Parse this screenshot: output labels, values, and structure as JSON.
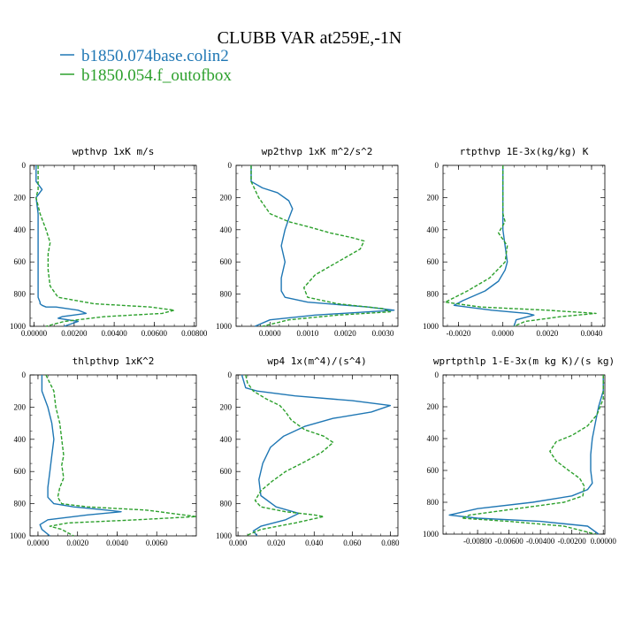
{
  "figure": {
    "title": "CLUBB VAR at259E,-1N",
    "legend": [
      {
        "label": "b1850.074base.colin2",
        "color": "#1f77b4"
      },
      {
        "label": "b1850.054.f_outofbox",
        "color": "#2ca02c"
      }
    ]
  },
  "chart_data": [
    {
      "type": "line",
      "title": "wpthvp  1xK m/s",
      "xlim": [
        -0.0002,
        0.0081
      ],
      "ylim": [
        1000,
        0
      ],
      "xticks": [
        0,
        0.002,
        0.004,
        0.006,
        0.008
      ],
      "xtick_labels": [
        "0.00000",
        "0.00200",
        "0.00400",
        "0.00600",
        "0.00800"
      ],
      "yticks": [
        0,
        200,
        400,
        600,
        800,
        1000
      ],
      "ytick_labels": [
        "0",
        "200",
        "400",
        "600",
        "800",
        "1000"
      ],
      "series": [
        {
          "color": "#1f77b4",
          "dash": false,
          "x": [
            0.0001,
            0.0001,
            0.0004,
            0.0001,
            0.0002,
            0.0002,
            0.0002,
            0.0002,
            0.0003,
            0.0003,
            0.0004,
            0.0006,
            0.0011,
            0.0022,
            0.0026,
            0.0014,
            0.0012,
            0.0022,
            0.0015
          ],
          "y": [
            0,
            100,
            150,
            200,
            300,
            500,
            700,
            820,
            850,
            860,
            870,
            880,
            880,
            900,
            920,
            940,
            950,
            970,
            1000
          ]
        },
        {
          "color": "#2ca02c",
          "dash": true,
          "x": [
            0.0002,
            0.0002,
            0.0001,
            0.0003,
            0.0006,
            0.0008,
            0.0007,
            0.0007,
            0.0008,
            0.0012,
            0.003,
            0.0058,
            0.007,
            0.0064,
            0.0035,
            0.0015,
            0.0006
          ],
          "y": [
            0,
            150,
            200,
            300,
            400,
            480,
            550,
            650,
            750,
            820,
            860,
            880,
            900,
            920,
            940,
            970,
            1000
          ]
        }
      ]
    },
    {
      "type": "line",
      "title": "wp2thvp  1xK m^2/s^2",
      "xlim": [
        -0.0009,
        0.0034
      ],
      "ylim": [
        1000,
        0
      ],
      "xticks": [
        0,
        0.001,
        0.002,
        0.003
      ],
      "xtick_labels": [
        "0.0000",
        "0.0010",
        "0.0020",
        "0.0030"
      ],
      "yticks": [
        0,
        200,
        400,
        600,
        800,
        1000
      ],
      "ytick_labels": [
        "0",
        "200",
        "400",
        "600",
        "800",
        "1000"
      ],
      "series": [
        {
          "color": "#1f77b4",
          "dash": false,
          "x": [
            -0.0005,
            -0.0005,
            -0.0002,
            0.0002,
            0.0005,
            0.0006,
            0.0005,
            0.0004,
            0.0003,
            0.0004,
            0.0003,
            0.0003,
            0.0004,
            0.001,
            0.0026,
            0.0033,
            0.0012,
            0.0,
            -0.0004
          ],
          "y": [
            0,
            100,
            140,
            170,
            220,
            270,
            330,
            400,
            500,
            600,
            700,
            780,
            820,
            850,
            880,
            900,
            930,
            960,
            1000
          ]
        },
        {
          "color": "#2ca02c",
          "dash": true,
          "x": [
            -0.0005,
            -0.0005,
            -0.0003,
            0.0,
            0.0005,
            0.001,
            0.0016,
            0.0022,
            0.0025,
            0.0024,
            0.0018,
            0.0012,
            0.0009,
            0.001,
            0.0018,
            0.003,
            0.0032,
            0.0018,
            0.0005,
            -0.0002
          ],
          "y": [
            0,
            100,
            200,
            300,
            350,
            380,
            420,
            450,
            470,
            520,
            600,
            680,
            760,
            820,
            860,
            890,
            910,
            930,
            960,
            1000
          ]
        }
      ]
    },
    {
      "type": "line",
      "title": "rtpthvp  1E-3x(kg/kg) K",
      "xlim": [
        -0.0027,
        0.0046
      ],
      "ylim": [
        1000,
        0
      ],
      "xticks": [
        -0.002,
        0,
        0.002,
        0.004
      ],
      "xtick_labels": [
        "-0.0020",
        "0.0000",
        "0.0020",
        "0.0040"
      ],
      "yticks": [
        0,
        200,
        400,
        600,
        800,
        1000
      ],
      "ytick_labels": [
        "0",
        "200",
        "400",
        "600",
        "800",
        "1000"
      ],
      "series": [
        {
          "color": "#1f77b4",
          "dash": false,
          "x": [
            0.0,
            0.0,
            0.0,
            0.0001,
            0.0002,
            0.0001,
            -0.0002,
            -0.0008,
            -0.0018,
            -0.0022,
            -0.0005,
            0.0011,
            0.0014,
            0.0006,
            0.0005
          ],
          "y": [
            0,
            200,
            400,
            500,
            600,
            650,
            720,
            780,
            840,
            870,
            900,
            920,
            930,
            960,
            1000
          ]
        },
        {
          "color": "#2ca02c",
          "dash": true,
          "x": [
            0.0,
            0.0,
            0.0,
            0.0001,
            -0.0002,
            0.0002,
            0.0001,
            -0.0006,
            -0.0016,
            -0.0026,
            -0.001,
            0.002,
            0.0042,
            0.0026,
            0.001,
            0.0005
          ],
          "y": [
            0,
            200,
            300,
            350,
            420,
            500,
            600,
            700,
            780,
            850,
            880,
            900,
            920,
            940,
            970,
            1000
          ]
        }
      ]
    },
    {
      "type": "line",
      "title": "thlpthvp  1xK^2",
      "xlim": [
        -0.0004,
        0.008
      ],
      "ylim": [
        1000,
        0
      ],
      "xticks": [
        0,
        0.002,
        0.004,
        0.006
      ],
      "xtick_labels": [
        "0.0000",
        "0.0020",
        "0.0040",
        "0.0060"
      ],
      "yticks": [
        0,
        200,
        400,
        600,
        800,
        1000
      ],
      "ytick_labels": [
        "0",
        "200",
        "400",
        "600",
        "800",
        "1000"
      ],
      "series": [
        {
          "color": "#1f77b4",
          "dash": false,
          "x": [
            0.0002,
            0.0002,
            0.0005,
            0.0007,
            0.0008,
            0.0007,
            0.0006,
            0.0005,
            0.0005,
            0.0008,
            0.0018,
            0.0035,
            0.0042,
            0.0025,
            0.0005,
            0.0001,
            0.0002,
            0.0006
          ],
          "y": [
            0,
            100,
            200,
            300,
            400,
            500,
            600,
            700,
            760,
            800,
            820,
            840,
            850,
            870,
            900,
            930,
            960,
            1000
          ]
        },
        {
          "color": "#2ca02c",
          "dash": true,
          "x": [
            0.0004,
            0.0006,
            0.0008,
            0.0009,
            0.0011,
            0.0012,
            0.0013,
            0.0012,
            0.0013,
            0.0011,
            0.001,
            0.0012,
            0.0025,
            0.0055,
            0.008,
            0.005,
            0.0015,
            0.0006,
            0.0012,
            0.0018
          ],
          "y": [
            0,
            50,
            100,
            200,
            300,
            400,
            500,
            560,
            640,
            700,
            760,
            800,
            820,
            840,
            880,
            900,
            920,
            940,
            960,
            1000
          ]
        }
      ]
    },
    {
      "type": "line",
      "title": "wp4  1x(m^4)/(s^4)",
      "xlim": [
        -0.001,
        0.084
      ],
      "ylim": [
        1000,
        0
      ],
      "xticks": [
        0,
        0.02,
        0.04,
        0.06,
        0.08
      ],
      "xtick_labels": [
        "0.000",
        "0.020",
        "0.040",
        "0.060",
        "0.080"
      ],
      "yticks": [
        0,
        200,
        400,
        600,
        800,
        1000
      ],
      "ytick_labels": [
        "0",
        "200",
        "400",
        "600",
        "800",
        "1000"
      ],
      "series": [
        {
          "color": "#1f77b4",
          "dash": false,
          "x": [
            0.002,
            0.004,
            0.01,
            0.03,
            0.06,
            0.08,
            0.07,
            0.05,
            0.035,
            0.024,
            0.017,
            0.013,
            0.011,
            0.012,
            0.02,
            0.032,
            0.025,
            0.012,
            0.008,
            0.01
          ],
          "y": [
            0,
            80,
            100,
            130,
            160,
            190,
            230,
            270,
            320,
            380,
            450,
            550,
            650,
            750,
            820,
            860,
            900,
            940,
            970,
            1000
          ]
        },
        {
          "color": "#2ca02c",
          "dash": true,
          "x": [
            0.004,
            0.005,
            0.008,
            0.015,
            0.022,
            0.025,
            0.028,
            0.035,
            0.045,
            0.05,
            0.044,
            0.035,
            0.025,
            0.018,
            0.012,
            0.009,
            0.012,
            0.025,
            0.04,
            0.045,
            0.03,
            0.012,
            0.004
          ],
          "y": [
            0,
            50,
            100,
            150,
            190,
            230,
            280,
            340,
            380,
            420,
            480,
            540,
            600,
            660,
            720,
            780,
            820,
            850,
            870,
            880,
            920,
            960,
            1000
          ]
        }
      ]
    },
    {
      "type": "line",
      "title": "wprtpthlp  1-E-3x(m kg K)/(s kg)",
      "xlim": [
        -0.0102,
        0.0001
      ],
      "ylim": [
        1000,
        0
      ],
      "xticks": [
        -0.008,
        -0.006,
        -0.004,
        -0.002,
        0
      ],
      "xtick_labels": [
        "-0.00800",
        "-0.00600",
        "-0.00400",
        "-0.00200",
        "0.00000"
      ],
      "yticks": [
        0,
        200,
        400,
        600,
        800,
        1000
      ],
      "ytick_labels": [
        "0",
        "200",
        "400",
        "600",
        "800",
        "1000"
      ],
      "series": [
        {
          "color": "#1f77b4",
          "dash": false,
          "x": [
            0.0,
            0.0,
            -0.0003,
            -0.0005,
            -0.0007,
            -0.0008,
            -0.0008,
            -0.0007,
            -0.001,
            -0.002,
            -0.0045,
            -0.008,
            -0.0098,
            -0.008,
            -0.004,
            -0.001,
            -0.0003
          ],
          "y": [
            0,
            100,
            200,
            300,
            400,
            500,
            600,
            680,
            720,
            760,
            800,
            840,
            880,
            900,
            920,
            950,
            1000
          ]
        },
        {
          "color": "#2ca02c",
          "dash": true,
          "x": [
            0.0,
            0.0,
            -0.0004,
            -0.001,
            -0.002,
            -0.003,
            -0.0034,
            -0.003,
            -0.0022,
            -0.0015,
            -0.0012,
            -0.0013,
            -0.0025,
            -0.0055,
            -0.0085,
            -0.009,
            -0.006,
            -0.0025,
            -0.0005
          ],
          "y": [
            0,
            150,
            250,
            320,
            380,
            420,
            480,
            540,
            600,
            650,
            700,
            760,
            800,
            840,
            880,
            900,
            920,
            950,
            1000
          ]
        }
      ]
    }
  ]
}
